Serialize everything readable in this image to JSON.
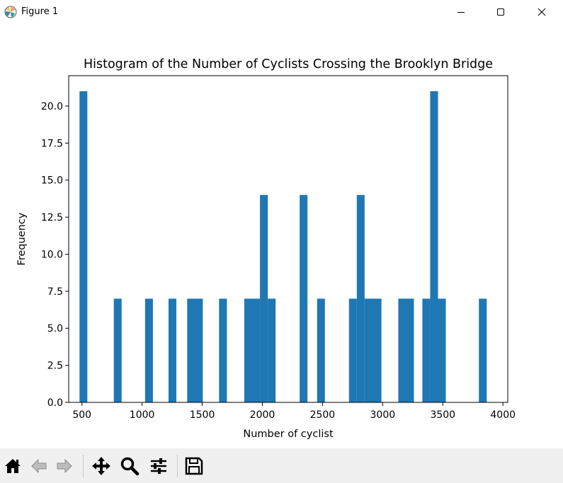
{
  "window": {
    "title": "Figure 1"
  },
  "toolbar": {
    "buttons": [
      {
        "name": "home-button",
        "icon": "home-icon"
      },
      {
        "name": "back-button",
        "icon": "arrow-left-icon"
      },
      {
        "name": "forward-button",
        "icon": "arrow-right-icon"
      },
      {
        "name": "pan-button",
        "icon": "move-icon"
      },
      {
        "name": "zoom-button",
        "icon": "magnifier-icon"
      },
      {
        "name": "configure-subplots-button",
        "icon": "sliders-icon"
      },
      {
        "name": "save-button",
        "icon": "floppy-disk-icon"
      }
    ]
  },
  "chart_data": {
    "type": "bar",
    "title": "Histogram of the Number of Cyclists Crossing the Brooklyn Bridge",
    "xlabel": "Number of cyclist",
    "ylabel": "Frequency",
    "xlim": [
      390,
      4040
    ],
    "ylim": [
      0,
      22.05
    ],
    "xticks": [
      500,
      1000,
      1500,
      2000,
      2500,
      3000,
      3500,
      4000
    ],
    "yticks": [
      0.0,
      2.5,
      5.0,
      7.5,
      10.0,
      12.5,
      15.0,
      17.5,
      20.0
    ],
    "ytick_labels": [
      "0.0",
      "2.5",
      "5.0",
      "7.5",
      "10.0",
      "12.5",
      "15.0",
      "17.5",
      "20.0"
    ],
    "bar_color": "#1f77b4",
    "grid": false,
    "bins": [
      {
        "x0": 480,
        "x1": 545,
        "count": 21
      },
      {
        "x0": 765,
        "x1": 830,
        "count": 7
      },
      {
        "x0": 1025,
        "x1": 1090,
        "count": 7
      },
      {
        "x0": 1220,
        "x1": 1285,
        "count": 7
      },
      {
        "x0": 1375,
        "x1": 1505,
        "count": 7
      },
      {
        "x0": 1640,
        "x1": 1705,
        "count": 7
      },
      {
        "x0": 1850,
        "x1": 1980,
        "count": 7
      },
      {
        "x0": 1980,
        "x1": 2045,
        "count": 14
      },
      {
        "x0": 2045,
        "x1": 2110,
        "count": 7
      },
      {
        "x0": 2310,
        "x1": 2375,
        "count": 14
      },
      {
        "x0": 2455,
        "x1": 2520,
        "count": 7
      },
      {
        "x0": 2720,
        "x1": 2785,
        "count": 7
      },
      {
        "x0": 2785,
        "x1": 2850,
        "count": 14
      },
      {
        "x0": 2850,
        "x1": 2990,
        "count": 7
      },
      {
        "x0": 3130,
        "x1": 3260,
        "count": 7
      },
      {
        "x0": 3330,
        "x1": 3395,
        "count": 7
      },
      {
        "x0": 3395,
        "x1": 3460,
        "count": 21
      },
      {
        "x0": 3460,
        "x1": 3525,
        "count": 7
      },
      {
        "x0": 3800,
        "x1": 3865,
        "count": 7
      }
    ]
  }
}
